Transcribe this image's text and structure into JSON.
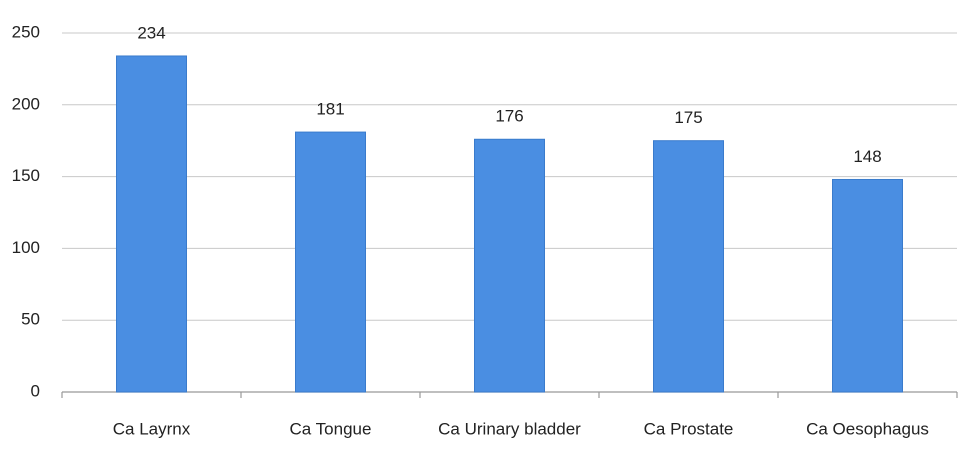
{
  "chart_data": {
    "type": "bar",
    "categories": [
      "Ca Layrnx",
      "Ca Tongue",
      "Ca Urinary bladder",
      "Ca Prostate",
      "Ca Oesophagus"
    ],
    "values": [
      234,
      181,
      176,
      175,
      148
    ],
    "color": "#4a8ee2",
    "ylim": [
      0,
      250
    ],
    "yticks": [
      0,
      50,
      100,
      150,
      200,
      250
    ],
    "grid": true
  }
}
